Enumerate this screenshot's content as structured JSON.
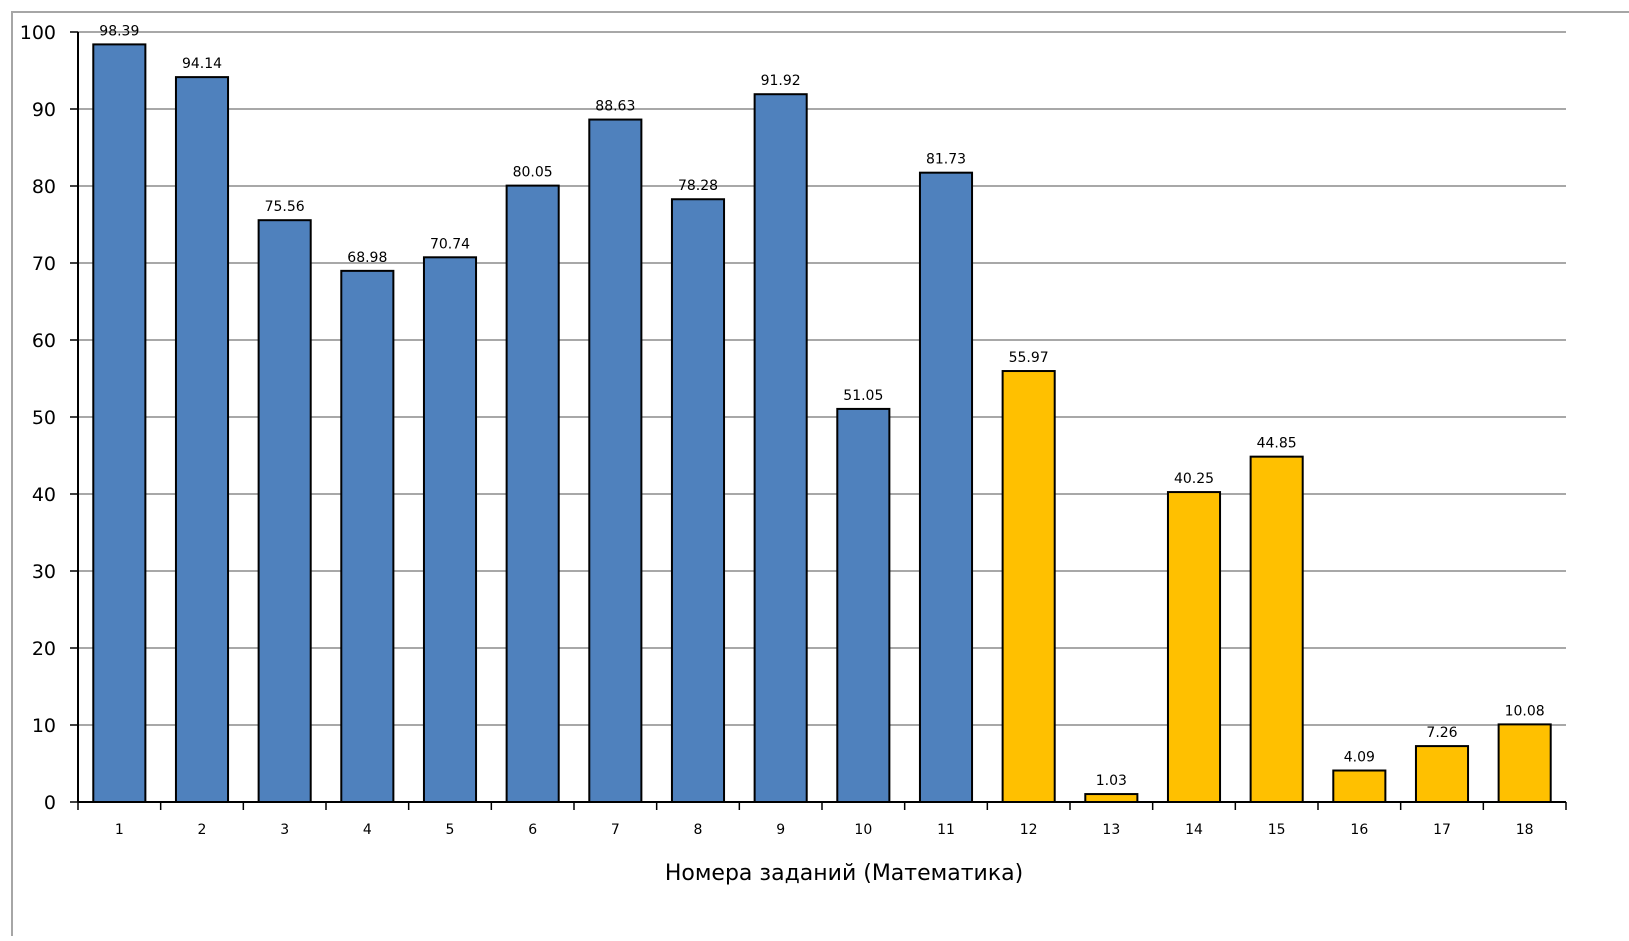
{
  "chart_data": {
    "type": "bar",
    "title": "",
    "xlabel": "Номера заданий (Математика)",
    "ylabel": "",
    "ylim": [
      0,
      100
    ],
    "yticks": [
      0,
      10,
      20,
      30,
      40,
      50,
      60,
      70,
      80,
      90,
      100
    ],
    "grid": true,
    "legend": "none",
    "categories": [
      "1",
      "2",
      "3",
      "4",
      "5",
      "6",
      "7",
      "8",
      "9",
      "10",
      "11",
      "12",
      "13",
      "14",
      "15",
      "16",
      "17",
      "18"
    ],
    "values": [
      98.39,
      94.14,
      75.56,
      68.98,
      70.74,
      80.05,
      88.63,
      78.28,
      91.92,
      51.05,
      81.73,
      55.97,
      1.03,
      40.25,
      44.85,
      4.09,
      7.26,
      10.08
    ],
    "data_labels": [
      "98.39",
      "94.14",
      "75.56",
      "68.98",
      "70.74",
      "80.05",
      "88.63",
      "78.28",
      "91.92",
      "51.05",
      "81.73",
      "55.97",
      "1.03",
      "40.25",
      "44.85",
      "4.09",
      "7.26",
      "10.08"
    ],
    "bar_colors": [
      "#4f81bd",
      "#4f81bd",
      "#4f81bd",
      "#4f81bd",
      "#4f81bd",
      "#4f81bd",
      "#4f81bd",
      "#4f81bd",
      "#4f81bd",
      "#4f81bd",
      "#4f81bd",
      "#ffc000",
      "#ffc000",
      "#ffc000",
      "#ffc000",
      "#ffc000",
      "#ffc000",
      "#ffc000"
    ],
    "colors": {
      "primary": "#4f81bd",
      "secondary": "#ffc000",
      "gridline": "#8c8c8c",
      "bar_border": "#000000",
      "frame": "#a6a6a6"
    }
  }
}
